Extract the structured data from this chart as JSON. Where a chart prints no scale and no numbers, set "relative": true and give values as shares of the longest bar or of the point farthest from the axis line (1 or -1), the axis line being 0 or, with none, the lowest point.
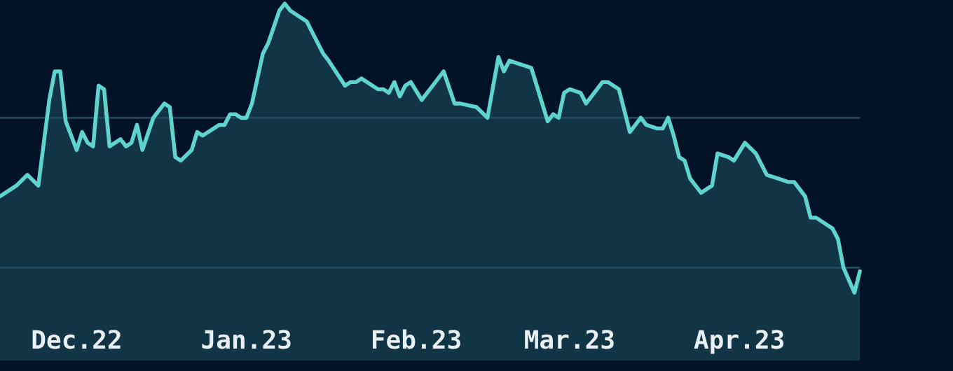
{
  "chart_data": {
    "type": "area",
    "relative": true,
    "x": [
      "2022-11-17",
      "2022-11-18",
      "2022-11-20",
      "2022-11-22",
      "2022-11-24",
      "2022-11-26",
      "2022-11-27",
      "2022-11-28",
      "2022-11-29",
      "2022-12-01",
      "2022-12-02",
      "2022-12-03",
      "2022-12-04",
      "2022-12-05",
      "2022-12-06",
      "2022-12-07",
      "2022-12-09",
      "2022-12-10",
      "2022-12-11",
      "2022-12-12",
      "2022-12-13",
      "2022-12-15",
      "2022-12-17",
      "2022-12-18",
      "2022-12-19",
      "2022-12-20",
      "2022-12-22",
      "2022-12-23",
      "2022-12-24",
      "2022-12-26",
      "2022-12-27",
      "2022-12-28",
      "2022-12-29",
      "2022-12-30",
      "2022-12-31",
      "2023-01-01",
      "2023-01-02",
      "2023-01-04",
      "2023-01-05",
      "2023-01-07",
      "2023-01-08",
      "2023-01-09",
      "2023-01-12",
      "2023-01-13",
      "2023-01-15",
      "2023-01-16",
      "2023-01-19",
      "2023-01-20",
      "2023-01-21",
      "2023-01-22",
      "2023-01-24",
      "2023-01-25",
      "2023-01-26",
      "2023-01-27",
      "2023-01-28",
      "2023-01-29",
      "2023-01-30",
      "2023-01-31",
      "2023-02-02",
      "2023-02-04",
      "2023-02-05",
      "2023-02-06",
      "2023-02-08",
      "2023-02-09",
      "2023-02-12",
      "2023-02-14",
      "2023-02-16",
      "2023-02-17",
      "2023-02-18",
      "2023-02-20",
      "2023-02-22",
      "2023-02-23",
      "2023-02-25",
      "2023-02-26",
      "2023-02-27",
      "2023-02-28",
      "2023-03-01",
      "2023-03-03",
      "2023-03-04",
      "2023-03-07",
      "2023-03-08",
      "2023-03-10",
      "2023-03-12",
      "2023-03-14",
      "2023-03-15",
      "2023-03-17",
      "2023-03-18",
      "2023-03-19",
      "2023-03-20",
      "2023-03-21",
      "2023-03-22",
      "2023-03-23",
      "2023-03-25",
      "2023-03-27",
      "2023-03-28",
      "2023-03-30",
      "2023-03-31",
      "2023-04-02",
      "2023-04-04",
      "2023-04-05",
      "2023-04-06",
      "2023-04-08",
      "2023-04-10",
      "2023-04-11",
      "2023-04-13",
      "2023-04-14",
      "2023-04-15",
      "2023-04-17",
      "2023-04-18",
      "2023-04-19",
      "2023-04-20",
      "2023-04-22",
      "2023-04-23"
    ],
    "series": [
      {
        "color": "#5fd3d0",
        "values": [
          0.46,
          0.47,
          0.49,
          0.52,
          0.49,
          0.73,
          0.81,
          0.81,
          0.67,
          0.59,
          0.64,
          0.61,
          0.6,
          0.77,
          0.76,
          0.6,
          0.62,
          0.6,
          0.61,
          0.66,
          0.59,
          0.68,
          0.72,
          0.71,
          0.57,
          0.56,
          0.59,
          0.64,
          0.63,
          0.65,
          0.66,
          0.66,
          0.69,
          0.69,
          0.68,
          0.68,
          0.72,
          0.86,
          0.89,
          0.98,
          1,
          0.98,
          0.95,
          0.92,
          0.86,
          0.84,
          0.77,
          0.78,
          0.78,
          0.79,
          0.77,
          0.76,
          0.76,
          0.75,
          0.78,
          0.74,
          0.77,
          0.78,
          0.73,
          0.77,
          0.79,
          0.81,
          0.72,
          0.72,
          0.71,
          0.68,
          0.85,
          0.81,
          0.84,
          0.83,
          0.82,
          0.77,
          0.67,
          0.69,
          0.68,
          0.75,
          0.76,
          0.75,
          0.72,
          0.78,
          0.78,
          0.76,
          0.64,
          0.68,
          0.66,
          0.65,
          0.65,
          0.68,
          0.63,
          0.57,
          0.56,
          0.51,
          0.47,
          0.49,
          0.58,
          0.57,
          0.56,
          0.61,
          0.58,
          0.55,
          0.52,
          0.51,
          0.5,
          0.5,
          0.46,
          0.4,
          0.4,
          0.38,
          0.37,
          0.34,
          0.26,
          0.19,
          0.25
        ]
      }
    ],
    "xlim": [
      "2022-11-17",
      "2023-05-10"
    ],
    "xticks": [
      {
        "value": "2022-12-01",
        "label": "Dec.22"
      },
      {
        "value": "2023-01-01",
        "label": "Jan.23"
      },
      {
        "value": "2023-02-01",
        "label": "Feb.23"
      },
      {
        "value": "2023-03-01",
        "label": "Mar.23"
      },
      {
        "value": "2023-04-01",
        "label": "Apr.23"
      }
    ],
    "ref_lines": [
      {
        "axis": "y",
        "value": 0.68,
        "color": "#1f4a60"
      },
      {
        "axis": "y",
        "value": 0.26,
        "color": "#1f4a60"
      }
    ],
    "grid": false,
    "legend": false
  }
}
